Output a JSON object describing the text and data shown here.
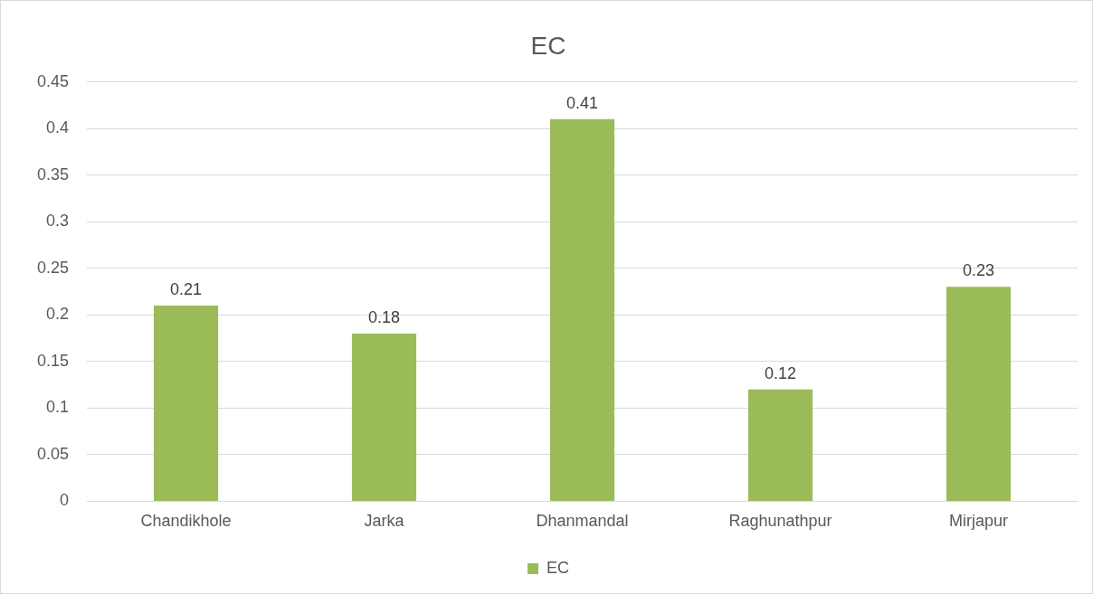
{
  "chart_data": {
    "type": "bar",
    "title": "EC",
    "categories": [
      "Chandikhole",
      "Jarka",
      "Dhanmandal",
      "Raghunathpur",
      "Mirjapur"
    ],
    "series": [
      {
        "name": "EC",
        "color": "#9bbb59",
        "values": [
          0.21,
          0.18,
          0.41,
          0.12,
          0.23
        ]
      }
    ],
    "ylim": [
      0,
      0.45
    ],
    "yticks": [
      0,
      0.05,
      0.1,
      0.15,
      0.2,
      0.25,
      0.3,
      0.35,
      0.4,
      0.45
    ],
    "grid": "y",
    "legend": "bottom",
    "data_labels": true
  }
}
